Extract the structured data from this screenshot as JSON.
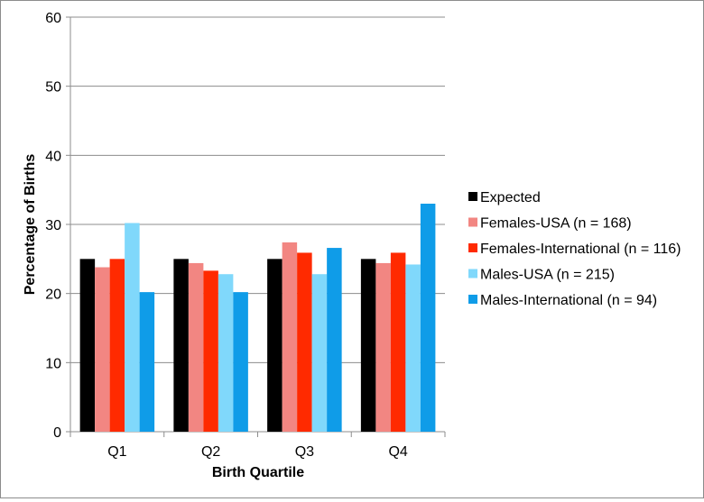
{
  "chart_data": {
    "type": "bar",
    "title": "",
    "xlabel": "Birth Quartile",
    "ylabel": "Percentage of Births",
    "ylim": [
      0,
      60
    ],
    "yticks": [
      0,
      10,
      20,
      30,
      40,
      50,
      60
    ],
    "grid": true,
    "legend_position": "right",
    "categories": [
      "Q1",
      "Q2",
      "Q3",
      "Q4"
    ],
    "series": [
      {
        "name": "Expected",
        "color": "#000000",
        "values": [
          25.0,
          25.0,
          25.0,
          25.0
        ]
      },
      {
        "name": "Females-USA (n = 168)",
        "color": "#f28682",
        "values": [
          23.8,
          24.4,
          27.4,
          24.4
        ]
      },
      {
        "name": "Females-International (n = 116)",
        "color": "#ff2a00",
        "values": [
          25.0,
          23.3,
          25.9,
          25.9
        ]
      },
      {
        "name": "Males-USA (n = 215)",
        "color": "#80d8fb",
        "values": [
          30.2,
          22.8,
          22.8,
          24.2
        ]
      },
      {
        "name": "Males-International (n = 94)",
        "color": "#0f9ce8",
        "values": [
          20.2,
          20.2,
          26.6,
          33.0
        ]
      }
    ]
  }
}
